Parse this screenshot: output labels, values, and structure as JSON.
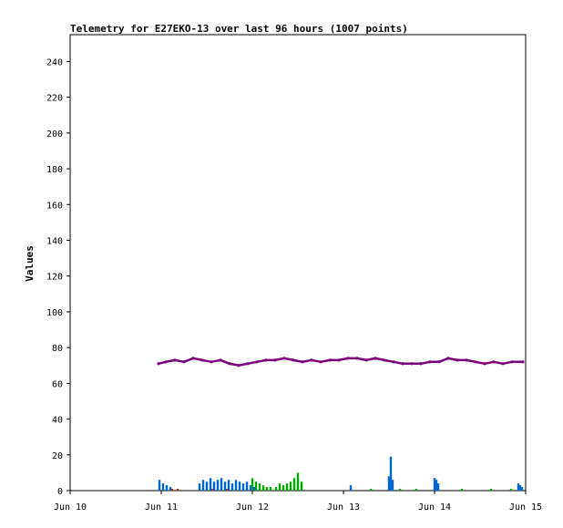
{
  "chart_data": {
    "type": "line",
    "title": "Telemetry for E27EKO-13 over last 96 hours (1007 points)",
    "xlabel": "",
    "ylabel": "Values",
    "x_ticks": [
      "Jun 10",
      "Jun 11",
      "Jun 12",
      "Jun 13",
      "Jun 14",
      "Jun 15"
    ],
    "y_ticks": [
      0,
      20,
      40,
      60,
      80,
      100,
      120,
      140,
      160,
      180,
      200,
      220,
      240
    ],
    "xlim_days": [
      10,
      15
    ],
    "ylim": [
      0,
      255
    ],
    "grid": false,
    "legend": "none",
    "series": [
      {
        "color": "#7b007b",
        "style": "line",
        "x": [
          10.97,
          11.05,
          11.15,
          11.25,
          11.35,
          11.45,
          11.55,
          11.65,
          11.75,
          11.85,
          11.95,
          12.05,
          12.15,
          12.25,
          12.35,
          12.45,
          12.55,
          12.65,
          12.75,
          12.85,
          12.95,
          13.05,
          13.15,
          13.25,
          13.35,
          13.45,
          13.55,
          13.65,
          13.75,
          13.85,
          13.95,
          14.05,
          14.15,
          14.25,
          14.35,
          14.45,
          14.55,
          14.65,
          14.75,
          14.85,
          14.97
        ],
        "values": [
          71,
          72,
          73,
          72,
          74,
          73,
          72,
          73,
          71,
          70,
          71,
          72,
          73,
          73,
          74,
          73,
          72,
          73,
          72,
          73,
          73,
          74,
          74,
          73,
          74,
          73,
          72,
          71,
          71,
          71,
          72,
          72,
          74,
          73,
          73,
          72,
          71,
          72,
          71,
          72,
          72
        ]
      },
      {
        "color": "#0066cc",
        "style": "spikes",
        "x": [
          10.98,
          11.02,
          11.06,
          11.1,
          11.42,
          11.46,
          11.5,
          11.54,
          11.58,
          11.62,
          11.66,
          11.7,
          11.74,
          11.78,
          11.82,
          11.86,
          11.9,
          11.94,
          11.98,
          12.02,
          13.08,
          13.5,
          13.52,
          13.54,
          14.0,
          14.02,
          14.04,
          14.92,
          14.94,
          14.96
        ],
        "values": [
          6,
          4,
          3,
          2,
          4,
          6,
          5,
          7,
          5,
          6,
          7,
          5,
          6,
          4,
          6,
          5,
          4,
          5,
          3,
          2,
          3,
          8,
          19,
          6,
          7,
          6,
          4,
          4,
          3,
          2
        ]
      },
      {
        "color": "#00aa00",
        "style": "spikes",
        "x": [
          12.0,
          12.04,
          12.08,
          12.12,
          12.16,
          12.2,
          12.26,
          12.3,
          12.34,
          12.38,
          12.42,
          12.46,
          12.5,
          12.54,
          13.3,
          13.62,
          13.8,
          14.3,
          14.62,
          14.84
        ],
        "values": [
          7,
          5,
          4,
          3,
          2,
          2,
          2,
          4,
          3,
          4,
          5,
          7,
          10,
          5,
          1,
          1,
          1,
          1,
          1,
          1
        ]
      },
      {
        "color": "#cc2200",
        "style": "spikes",
        "x": [
          11.12,
          11.18,
          11.56,
          11.72
        ],
        "values": [
          1,
          1,
          1,
          1
        ]
      }
    ]
  }
}
